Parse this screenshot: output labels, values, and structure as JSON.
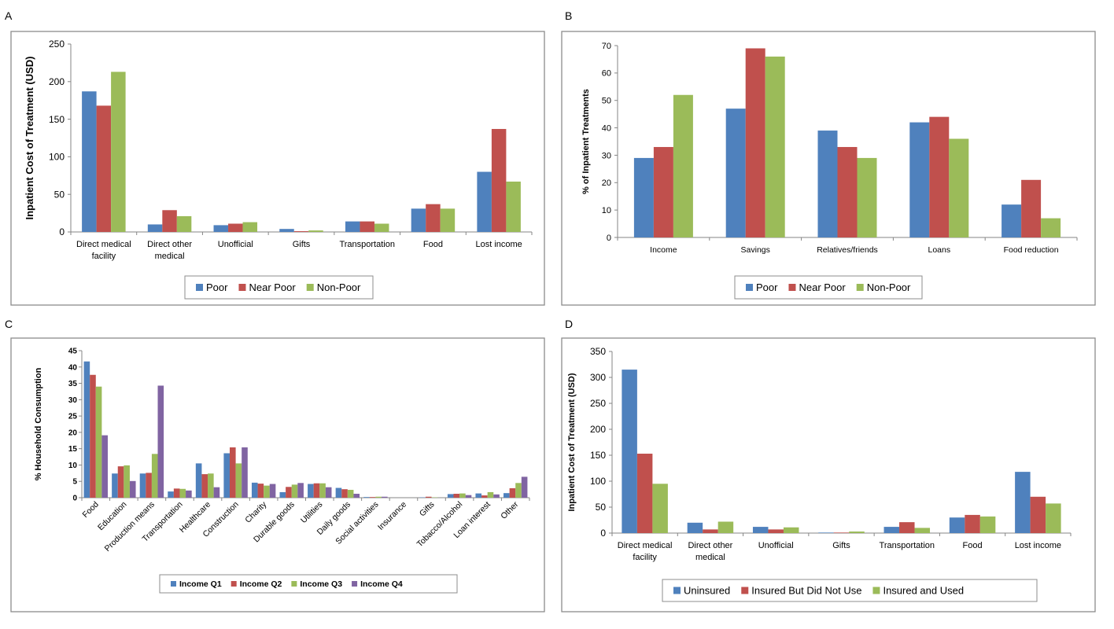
{
  "panels": [
    {
      "letter": "A"
    },
    {
      "letter": "B"
    },
    {
      "letter": "C"
    },
    {
      "letter": "D"
    }
  ],
  "chart_data": [
    {
      "panel": "A",
      "type": "bar",
      "ylabel": "Inpatient Cost of Treatment (USD)",
      "xlabel": "",
      "ylim": [
        0,
        250
      ],
      "yticks": [
        0,
        50,
        100,
        150,
        200,
        250
      ],
      "categories": [
        "Direct medical\nfacility",
        "Direct other\nmedical",
        "Unofficial",
        "Gifts",
        "Transportation",
        "Food",
        "Lost income"
      ],
      "series": [
        {
          "name": "Poor",
          "color": "#4f81bd",
          "values": [
            187,
            10,
            9,
            4,
            14,
            31,
            80
          ]
        },
        {
          "name": "Near Poor",
          "color": "#c0504d",
          "values": [
            168,
            29,
            11,
            1,
            14,
            37,
            137
          ]
        },
        {
          "name": "Non-Poor",
          "color": "#9bbb59",
          "values": [
            213,
            21,
            13,
            2,
            11,
            31,
            67
          ]
        }
      ],
      "grid": false,
      "legend": "bottom"
    },
    {
      "panel": "B",
      "type": "bar",
      "ylabel": "% of Inpatient Treatments",
      "xlabel": "",
      "ylim": [
        0,
        70
      ],
      "yticks": [
        0,
        10,
        20,
        30,
        40,
        50,
        60,
        70
      ],
      "categories": [
        "Income",
        "Savings",
        "Relatives/friends",
        "Loans",
        "Food reduction"
      ],
      "series": [
        {
          "name": "Poor",
          "color": "#4f81bd",
          "values": [
            29,
            47,
            39,
            42,
            12
          ]
        },
        {
          "name": "Near Poor",
          "color": "#c0504d",
          "values": [
            33,
            69,
            33,
            44,
            21
          ]
        },
        {
          "name": "Non-Poor",
          "color": "#9bbb59",
          "values": [
            52,
            66,
            29,
            36,
            7
          ]
        }
      ],
      "grid": false,
      "legend": "bottom"
    },
    {
      "panel": "C",
      "type": "bar",
      "ylabel": "% Household Consumption",
      "xlabel": "",
      "ylim": [
        0,
        45
      ],
      "yticks": [
        0,
        5,
        10,
        15,
        20,
        25,
        30,
        35,
        40,
        45
      ],
      "categories": [
        "Food",
        "Education",
        "Production means",
        "Transportation",
        "Healthcare",
        "Construction",
        "Charity",
        "Durable goods",
        "Utilities",
        "Daily goods",
        "Social activities",
        "Insurance",
        "Gifts",
        "Tobacco/Alcohol",
        "Loan interest",
        "Other"
      ],
      "series": [
        {
          "name": "Income Q1",
          "color": "#4f81bd",
          "values": [
            41.7,
            7.4,
            7.4,
            1.9,
            10.5,
            13.6,
            4.6,
            1.7,
            4.2,
            3.0,
            0.2,
            0.0,
            0.1,
            1.1,
            1.3,
            1.4
          ]
        },
        {
          "name": "Income Q2",
          "color": "#c0504d",
          "values": [
            37.6,
            9.6,
            7.6,
            2.8,
            7.2,
            15.4,
            4.3,
            3.3,
            4.4,
            2.6,
            0.2,
            0.0,
            0.3,
            1.2,
            0.7,
            2.9
          ]
        },
        {
          "name": "Income Q3",
          "color": "#9bbb59",
          "values": [
            34.0,
            9.9,
            13.4,
            2.7,
            7.4,
            10.5,
            3.7,
            4.0,
            4.4,
            2.4,
            0.3,
            0.0,
            0.1,
            1.3,
            1.7,
            4.5
          ]
        },
        {
          "name": "Income Q4",
          "color": "#8064a2",
          "values": [
            19.1,
            5.1,
            34.3,
            2.2,
            3.2,
            15.4,
            4.2,
            4.5,
            3.2,
            1.2,
            0.3,
            0.0,
            0.0,
            0.8,
            1.0,
            6.4
          ]
        }
      ],
      "grid": false,
      "legend": "bottom"
    },
    {
      "panel": "D",
      "type": "bar",
      "ylabel": "Inpatient Cost of Treatment (USD)",
      "xlabel": "",
      "ylim": [
        0,
        350
      ],
      "yticks": [
        0,
        50,
        100,
        150,
        200,
        250,
        300,
        350
      ],
      "categories": [
        "Direct medical\nfacility",
        "Direct other\nmedical",
        "Unofficial",
        "Gifts",
        "Transportation",
        "Food",
        "Lost income"
      ],
      "series": [
        {
          "name": "Uninsured",
          "color": "#4f81bd",
          "values": [
            315,
            20,
            12,
            1,
            12,
            30,
            118
          ]
        },
        {
          "name": "Insured But Did Not Use",
          "color": "#c0504d",
          "values": [
            153,
            7,
            7,
            1,
            21,
            35,
            70
          ]
        },
        {
          "name": "Insured and Used",
          "color": "#9bbb59",
          "values": [
            95,
            22,
            11,
            3,
            10,
            32,
            57
          ]
        }
      ],
      "grid": false,
      "legend": "bottom"
    }
  ]
}
